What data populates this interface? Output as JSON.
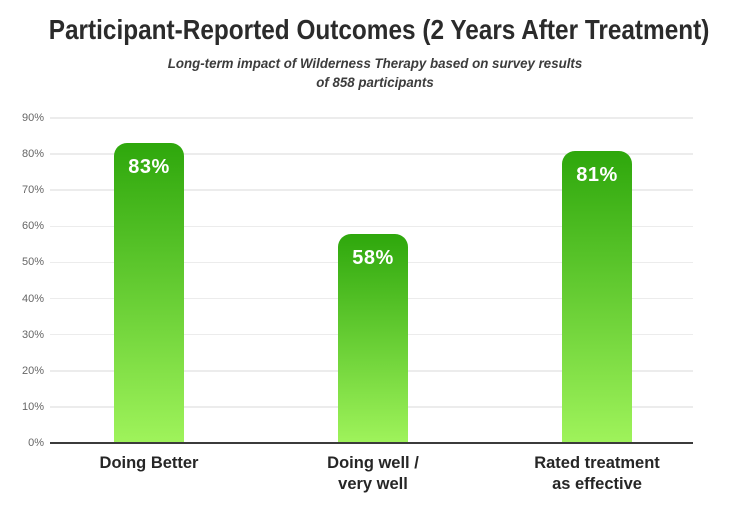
{
  "title": "Participant-Reported Outcomes (2 Years After Treatment)",
  "subtitle_line1": "Long-term impact of Wilderness Therapy based on survey results",
  "subtitle_line2": "of 858 participants",
  "colors": {
    "bar_gradient_top": "#2ea70c",
    "bar_gradient_bottom": "#9ff35b",
    "axis_line": "#3b3b3b",
    "gridline": "#ececec",
    "tick_label": "#666666",
    "title_text": "#2b2b2b",
    "subtitle_text": "#3c3c3c",
    "value_label": "#ffffff",
    "category_label": "#262626",
    "background": "#ffffff"
  },
  "chart_data": {
    "type": "bar",
    "title": "Participant-Reported Outcomes (2 Years After Treatment)",
    "subtitle": "Long-term impact of Wilderness Therapy based on survey results of 858 participants",
    "categories": [
      "Doing Better",
      "Doing well / very well",
      "Rated treatment as effective"
    ],
    "category_lines": [
      [
        "Doing Better"
      ],
      [
        "Doing well /",
        "very well"
      ],
      [
        "Rated treatment",
        "as effective"
      ]
    ],
    "values": [
      83,
      58,
      81
    ],
    "value_labels": [
      "83%",
      "58%",
      "81%"
    ],
    "xlabel": "",
    "ylabel": "",
    "ylim": [
      0,
      90
    ],
    "ytick_step": 10,
    "ytick_labels": [
      "0%",
      "10%",
      "20%",
      "30%",
      "40%",
      "50%",
      "60%",
      "70%",
      "80%",
      "90%"
    ],
    "grid": true,
    "legend": false,
    "bar_color": "green gradient (dark top to light bottom)"
  }
}
